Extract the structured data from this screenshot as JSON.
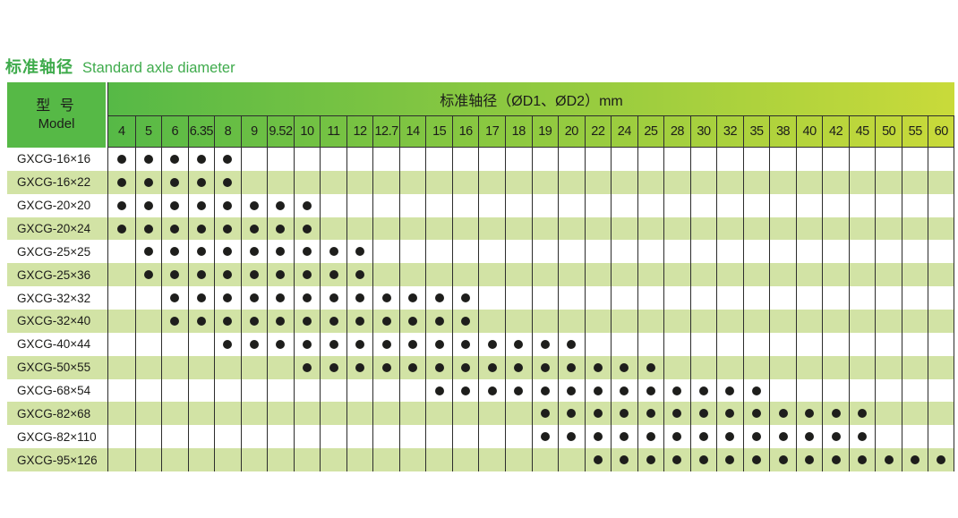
{
  "page": {
    "title_zh": "标准轴径",
    "title_en": "Standard axle diameter"
  },
  "table": {
    "model_header_zh": "型 号",
    "model_header_en": "Model",
    "span_header": "标准轴径（ØD1、ØD2）mm",
    "diameters": [
      "4",
      "5",
      "6",
      "6.35",
      "8",
      "9",
      "9.52",
      "10",
      "11",
      "12",
      "12.7",
      "14",
      "15",
      "16",
      "17",
      "18",
      "19",
      "20",
      "22",
      "24",
      "25",
      "28",
      "30",
      "32",
      "35",
      "38",
      "40",
      "42",
      "45",
      "50",
      "55",
      "60"
    ],
    "rows": [
      {
        "model": "GXCG-16×16",
        "dots": [
          "4",
          "5",
          "6",
          "6.35",
          "8"
        ]
      },
      {
        "model": "GXCG-16×22",
        "dots": [
          "4",
          "5",
          "6",
          "6.35",
          "8"
        ]
      },
      {
        "model": "GXCG-20×20",
        "dots": [
          "4",
          "5",
          "6",
          "6.35",
          "8",
          "9",
          "9.52",
          "10"
        ]
      },
      {
        "model": "GXCG-20×24",
        "dots": [
          "4",
          "5",
          "6",
          "6.35",
          "8",
          "9",
          "9.52",
          "10"
        ]
      },
      {
        "model": "GXCG-25×25",
        "dots": [
          "5",
          "6",
          "6.35",
          "8",
          "9",
          "9.52",
          "10",
          "11",
          "12"
        ]
      },
      {
        "model": "GXCG-25×36",
        "dots": [
          "5",
          "6",
          "6.35",
          "8",
          "9",
          "9.52",
          "10",
          "11",
          "12"
        ]
      },
      {
        "model": "GXCG-32×32",
        "dots": [
          "6",
          "6.35",
          "8",
          "9",
          "9.52",
          "10",
          "11",
          "12",
          "12.7",
          "14",
          "15",
          "16"
        ]
      },
      {
        "model": "GXCG-32×40",
        "dots": [
          "6",
          "6.35",
          "8",
          "9",
          "9.52",
          "10",
          "11",
          "12",
          "12.7",
          "14",
          "15",
          "16"
        ]
      },
      {
        "model": "GXCG-40×44",
        "dots": [
          "8",
          "9",
          "9.52",
          "10",
          "11",
          "12",
          "12.7",
          "14",
          "15",
          "16",
          "17",
          "18",
          "19",
          "20"
        ]
      },
      {
        "model": "GXCG-50×55",
        "dots": [
          "10",
          "11",
          "12",
          "12.7",
          "14",
          "15",
          "16",
          "17",
          "18",
          "19",
          "20",
          "22",
          "24",
          "25"
        ]
      },
      {
        "model": "GXCG-68×54",
        "dots": [
          "15",
          "16",
          "17",
          "18",
          "19",
          "20",
          "22",
          "24",
          "25",
          "28",
          "30",
          "32",
          "35"
        ]
      },
      {
        "model": "GXCG-82×68",
        "dots": [
          "19",
          "20",
          "22",
          "24",
          "25",
          "28",
          "30",
          "32",
          "35",
          "38",
          "40",
          "42",
          "45"
        ]
      },
      {
        "model": "GXCG-82×110",
        "dots": [
          "19",
          "20",
          "22",
          "24",
          "25",
          "28",
          "30",
          "32",
          "35",
          "38",
          "40",
          "42",
          "45"
        ]
      },
      {
        "model": "GXCG-95×126",
        "dots": [
          "22",
          "24",
          "25",
          "28",
          "30",
          "32",
          "35",
          "38",
          "40",
          "42",
          "45",
          "50",
          "55",
          "60"
        ]
      }
    ]
  },
  "colors": {
    "header_green": "#56b946",
    "header_yellow": "#c9da3a",
    "row_green": "#d2e3a5",
    "title_green": "#3fab4c",
    "grid_line": "#2d2d2d",
    "dot": "#1e1e1c",
    "text": "#1c1c1a"
  }
}
